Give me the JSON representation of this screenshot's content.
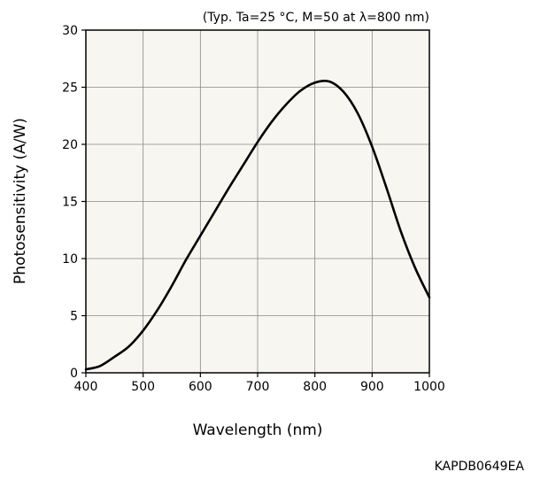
{
  "chart_data": {
    "type": "line",
    "title": "",
    "conditions": "(Typ. Ta=25 °C, M=50 at λ=800 nm)",
    "xlabel": "Wavelength (nm)",
    "ylabel": "Photosensitivity (A/W)",
    "xlim": [
      400,
      1000
    ],
    "ylim": [
      0,
      30
    ],
    "xticks": [
      400,
      500,
      600,
      700,
      800,
      900,
      1000
    ],
    "yticks": [
      0,
      5,
      10,
      15,
      20,
      25,
      30
    ],
    "grid": true,
    "plot_background": "#f7f6f0",
    "line_color": "#000000",
    "series": [
      {
        "x": [
          400,
          425,
          450,
          475,
          500,
          525,
          550,
          575,
          600,
          625,
          650,
          675,
          700,
          725,
          750,
          775,
          800,
          825,
          850,
          875,
          900,
          925,
          950,
          975,
          1000
        ],
        "y": [
          0.3,
          0.6,
          1.4,
          2.3,
          3.7,
          5.5,
          7.6,
          9.9,
          12.0,
          14.1,
          16.2,
          18.2,
          20.2,
          22.0,
          23.5,
          24.7,
          25.4,
          25.5,
          24.6,
          22.7,
          19.8,
          16.2,
          12.4,
          9.2,
          6.6
        ]
      }
    ],
    "figure_code": "KAPDB0649EA"
  }
}
